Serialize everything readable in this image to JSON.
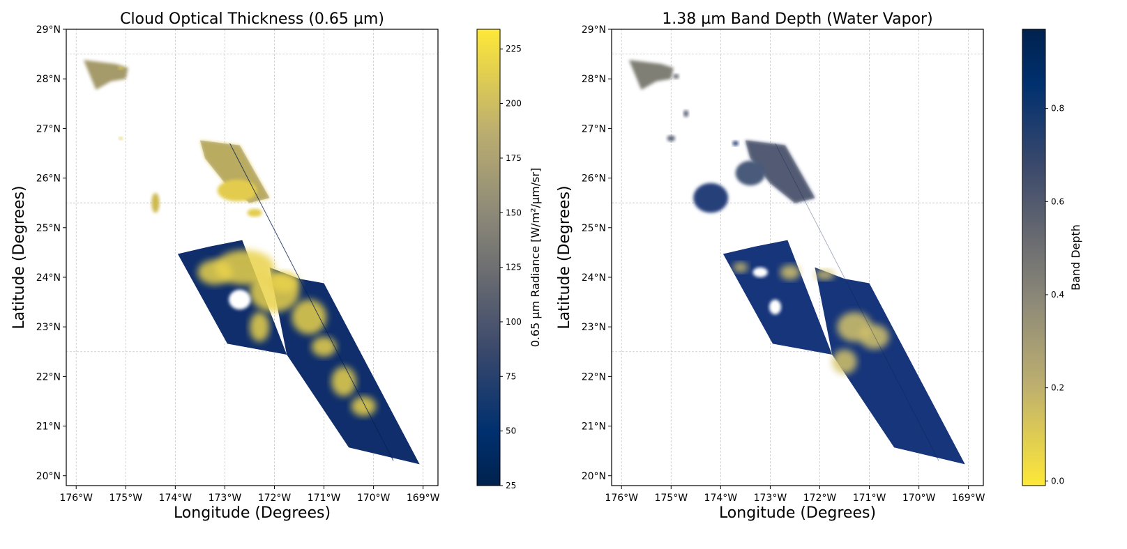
{
  "chart_data": [
    {
      "type": "heatmap",
      "title": "Cloud Optical Thickness (0.65 µm)",
      "xlabel": "Longitude (Degrees)",
      "ylabel": "Latitude (Degrees)",
      "xlim": [
        -176.2,
        -168.7
      ],
      "ylim": [
        19.8,
        29.0
      ],
      "xticks": [
        -176,
        -175,
        -174,
        -173,
        -172,
        -171,
        -170,
        -169
      ],
      "xtick_labels": [
        "176°W",
        "175°W",
        "174°W",
        "173°W",
        "172°W",
        "171°W",
        "170°W",
        "169°W"
      ],
      "yticks": [
        20,
        21,
        22,
        23,
        24,
        25,
        26,
        27,
        28,
        29
      ],
      "ytick_labels": [
        "20°N",
        "21°N",
        "22°N",
        "23°N",
        "24°N",
        "25°N",
        "26°N",
        "27°N",
        "28°N",
        "29°N"
      ],
      "grid": true,
      "colorbar": {
        "label": "0.65 µm Radiance [W/m²/µm/sr]",
        "range": [
          25,
          234
        ],
        "ticks": [
          25,
          50,
          75,
          100,
          125,
          150,
          175,
          200,
          225
        ],
        "tick_labels": [
          "25",
          "50",
          "75",
          "100",
          "125",
          "150",
          "175",
          "200",
          "225"
        ],
        "cmap": "cividis",
        "reversed": false
      },
      "high_color": "#fde737",
      "low_color": "#00224e"
    },
    {
      "type": "heatmap",
      "title": "1.38 µm Band Depth (Water Vapor)",
      "xlabel": "Longitude (Degrees)",
      "ylabel": "Latitude (Degrees)",
      "xlim": [
        -176.2,
        -168.7
      ],
      "ylim": [
        19.8,
        29.0
      ],
      "xticks": [
        -176,
        -175,
        -174,
        -173,
        -172,
        -171,
        -170,
        -169
      ],
      "xtick_labels": [
        "176°W",
        "175°W",
        "174°W",
        "173°W",
        "172°W",
        "171°W",
        "170°W",
        "169°W"
      ],
      "yticks": [
        20,
        21,
        22,
        23,
        24,
        25,
        26,
        27,
        28,
        29
      ],
      "ytick_labels": [
        "20°N",
        "21°N",
        "22°N",
        "23°N",
        "24°N",
        "25°N",
        "26°N",
        "27°N",
        "28°N",
        "29°N"
      ],
      "grid": true,
      "colorbar": {
        "label": "Band Depth",
        "range": [
          -0.01,
          0.97
        ],
        "ticks": [
          0.0,
          0.2,
          0.4,
          0.6,
          0.8
        ],
        "tick_labels": [
          "0.0",
          "0.2",
          "0.4",
          "0.6",
          "0.8"
        ],
        "cmap": "cividis",
        "reversed": true
      },
      "high_color": "#00224e",
      "low_color": "#fde737"
    }
  ]
}
